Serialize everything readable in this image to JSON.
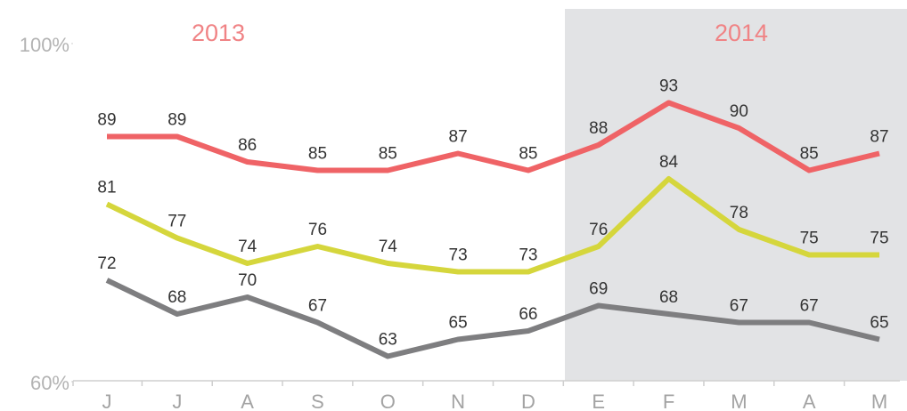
{
  "chart_data": {
    "type": "line",
    "annotations": [
      "2013",
      "2014"
    ],
    "categories": [
      "J",
      "J",
      "A",
      "S",
      "O",
      "N",
      "D",
      "E",
      "F",
      "M",
      "A",
      "M"
    ],
    "series": [
      {
        "color": "#ef6366",
        "values": [
          89,
          89,
          86,
          85,
          85,
          87,
          85,
          88,
          93,
          90,
          85,
          87
        ]
      },
      {
        "color": "#d5d63c",
        "values": [
          81,
          77,
          74,
          76,
          74,
          73,
          73,
          76,
          84,
          78,
          75,
          75
        ]
      },
      {
        "color": "#7e7e80",
        "values": [
          72,
          68,
          70,
          67,
          63,
          65,
          66,
          69,
          68,
          67,
          67,
          65
        ]
      }
    ],
    "ylim": [
      60,
      100
    ],
    "yticks": [
      {
        "value": 60,
        "label": "60%"
      },
      {
        "value": 100,
        "label": "100%"
      }
    ],
    "grid": false
  }
}
